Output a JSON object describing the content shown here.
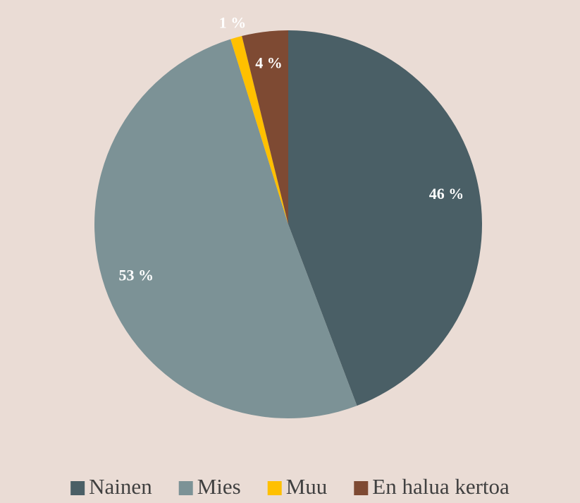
{
  "chart_data": {
    "type": "pie",
    "categories": [
      "Nainen",
      "Mies",
      "Muu",
      "En halua kertoa"
    ],
    "values": [
      46,
      53,
      1,
      4
    ],
    "value_labels": [
      "46 %",
      "53 %",
      "1 %",
      "4 %"
    ],
    "colors": [
      "#4a5f66",
      "#7c9296",
      "#ffc000",
      "#7e4a33"
    ],
    "legend": "bottom"
  }
}
